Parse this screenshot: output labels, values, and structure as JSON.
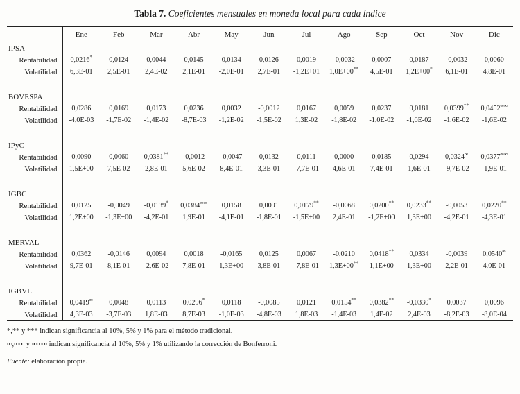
{
  "title": {
    "label": "Tabla 7.",
    "text": "Coeficientes mensuales en moneda local para cada índice"
  },
  "table": {
    "months": [
      "Ene",
      "Feb",
      "Mar",
      "Abr",
      "May",
      "Jun",
      "Jul",
      "Ago",
      "Sep",
      "Oct",
      "Nov",
      "Dic"
    ],
    "row_labels": {
      "rentabilidad": "Rentabilidad",
      "volatilidad": "Volatilidad"
    },
    "groups": [
      {
        "name": "IPSA",
        "rentabilidad": [
          "0,0216*",
          "0,0124",
          "0,0044",
          "0,0145",
          "0,0134",
          "0,0126",
          "0,0019",
          "-0,0032",
          "0,0007",
          "0,0187",
          "-0,0032",
          "0,0060"
        ],
        "volatilidad": [
          "6,3E-01",
          "2,5E-01",
          "2,4E-02",
          "2,1E-01",
          "-2,0E-01",
          "2,7E-01",
          "-1,2E+01",
          "1,0E+00**",
          "4,5E-01",
          "1,2E+00*",
          "6,1E-01",
          "4,8E-01"
        ]
      },
      {
        "name": "BOVESPA",
        "rentabilidad": [
          "0,0286",
          "0,0169",
          "0,0173",
          "0,0236",
          "0,0032",
          "-0,0012",
          "0,0167",
          "0,0059",
          "0,0237",
          "0,0181",
          "0,0399**",
          "0,0452∞∞"
        ],
        "volatilidad": [
          "-4,0E-03",
          "-1,7E-02",
          "-1,4E-02",
          "-8,7E-03",
          "-1,2E-02",
          "-1,5E-02",
          "1,3E-02",
          "-1,8E-02",
          "-1,0E-02",
          "-1,0E-02",
          "-1,6E-02",
          "-1,6E-02"
        ]
      },
      {
        "name": "IPyC",
        "rentabilidad": [
          "0,0090",
          "0,0060",
          "0,0381**",
          "-0,0012",
          "-0,0047",
          "0,0132",
          "0,0111",
          "0,0000",
          "0,0185",
          "0,0294",
          "0,0324∞",
          "0,0377∞∞"
        ],
        "volatilidad": [
          "1,5E+00",
          "7,5E-02",
          "2,8E-01",
          "5,6E-02",
          "8,4E-01",
          "3,3E-01",
          "-7,7E-01",
          "4,6E-01",
          "7,4E-01",
          "1,6E-01",
          "-9,7E-02",
          "-1,9E-01"
        ]
      },
      {
        "name": "IGBC",
        "rentabilidad": [
          "0,0125",
          "-0,0049",
          "-0,0139*",
          "0,0384∞∞",
          "0,0158",
          "0,0091",
          "0,0179**",
          "-0,0068",
          "0,0200**",
          "0,0233**",
          "-0,0053",
          "0,0220**"
        ],
        "volatilidad": [
          "1,2E+00",
          "-1,3E+00",
          "-4,2E-01",
          "1,9E-01",
          "-4,1E-01",
          "-1,8E-01",
          "-1,5E+00",
          "2,4E-01",
          "-1,2E+00",
          "1,3E+00",
          "-4,2E-01",
          "-4,3E-01"
        ]
      },
      {
        "name": "MERVAL",
        "rentabilidad": [
          "0,0362",
          "-0,0146",
          "0,0094",
          "0,0018",
          "-0,0165",
          "0,0125",
          "0,0067",
          "-0,0210",
          "0,0418**",
          "0,0334",
          "-0,0039",
          "0,0540∞"
        ],
        "volatilidad": [
          "9,7E-01",
          "8,1E-01",
          "-2,6E-02",
          "7,8E-01",
          "1,3E+00",
          "3,8E-01",
          "-7,8E-01",
          "1,3E+00**",
          "1,1E+00",
          "1,3E+00",
          "2,2E-01",
          "4,0E-01"
        ]
      },
      {
        "name": "IGBVL",
        "rentabilidad": [
          "0,0419∞",
          "0,0048",
          "0,0113",
          "0,0296*",
          "0,0118",
          "-0,0085",
          "0,0121",
          "0,0154**",
          "0,0382**",
          "-0,0330*",
          "0,0037",
          "0,0096"
        ],
        "volatilidad": [
          "4,3E-03",
          "-3,7E-03",
          "1,8E-03",
          "8,7E-03",
          "-1,0E-03",
          "-4,8E-03",
          "1,8E-03",
          "-1,4E-03",
          "1,4E-02",
          "2,4E-03",
          "-8,2E-03",
          "-8,0E-04"
        ]
      }
    ]
  },
  "footnotes": [
    "*,** y *** indican significancia al 10%, 5% y 1% para el método tradicional.",
    "∞,∞∞ y ∞∞∞ indican significancia al 10%, 5% y 1% utilizando la corrección de Bonferroni."
  ],
  "source": {
    "label": "Fuente:",
    "text": "elaboración propia."
  }
}
